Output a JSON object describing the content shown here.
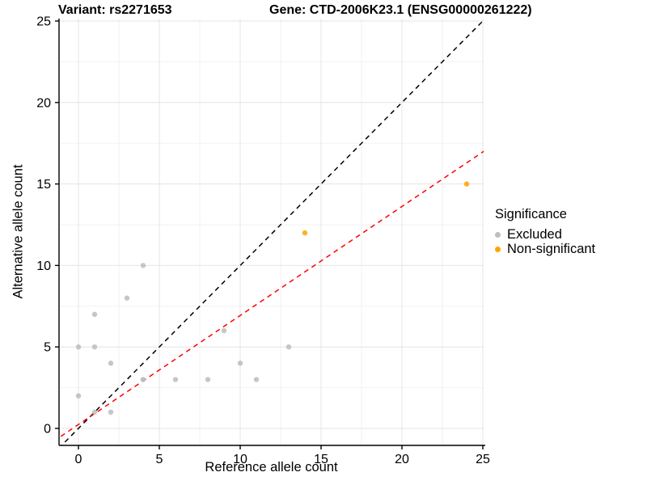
{
  "chart_data": {
    "type": "scatter",
    "title_left": "Variant: rs2271653",
    "title_right": "Gene: CTD-2006K23.1 (ENSG00000261222)",
    "xlabel": "Reference allele count",
    "ylabel": "Alternative allele count",
    "xlim": [
      -1.25,
      25.05
    ],
    "ylim": [
      -1.05,
      25.15
    ],
    "xticks": [
      0,
      5,
      10,
      15,
      20,
      25
    ],
    "yticks": [
      0,
      5,
      10,
      15,
      20,
      25
    ],
    "minor_xticks": [
      2.5,
      7.5,
      12.5,
      17.5,
      22.5
    ],
    "minor_yticks": [
      2.5,
      7.5,
      12.5,
      17.5,
      22.5
    ],
    "grid": true,
    "colors": {
      "excluded": "#bebebe",
      "non_significant": "#ffa500",
      "identity_line": "#000000",
      "fit_line": "#ff0000",
      "grid_major": "#e4e4e4",
      "grid_minor": "#f2f2f2",
      "axis": "#000000"
    },
    "series": [
      {
        "name": "Excluded",
        "color": "#bebebe",
        "points": [
          [
            0,
            2
          ],
          [
            0,
            5
          ],
          [
            1,
            1
          ],
          [
            1,
            5
          ],
          [
            1,
            7
          ],
          [
            2,
            1
          ],
          [
            2,
            4
          ],
          [
            3,
            8
          ],
          [
            4,
            3
          ],
          [
            4,
            3
          ],
          [
            4,
            10
          ],
          [
            6,
            3
          ],
          [
            8,
            3
          ],
          [
            9,
            6
          ],
          [
            10,
            4
          ],
          [
            11,
            3
          ],
          [
            13,
            5
          ]
        ]
      },
      {
        "name": "Non-significant",
        "color": "#ffa500",
        "points": [
          [
            14,
            12
          ],
          [
            24,
            15
          ]
        ]
      }
    ],
    "lines": [
      {
        "name": "identity-line",
        "color": "#000000",
        "style": "dashed",
        "slope": 1,
        "intercept": 0
      },
      {
        "name": "regression-line",
        "color": "#ff0000",
        "style": "dashed",
        "slope": 0.669,
        "intercept": 0.24
      }
    ],
    "legend": {
      "title": "Significance",
      "position": "right",
      "items": [
        {
          "label": "Excluded",
          "color": "#bebebe"
        },
        {
          "label": "Non-significant",
          "color": "#ffa500"
        }
      ]
    }
  }
}
